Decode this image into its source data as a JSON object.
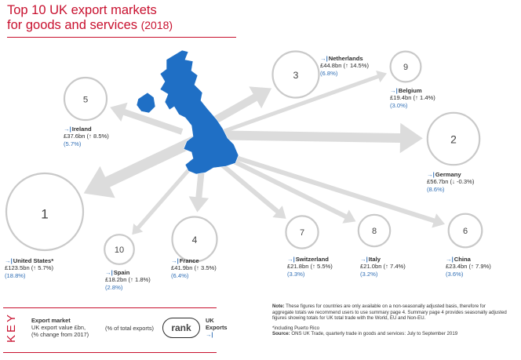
{
  "header": {
    "title_line1": "Top 10 UK export markets",
    "title_line2": "for goods and services",
    "title_year": "(2018)"
  },
  "chart_data": {
    "type": "bubble-map",
    "unit": "£bn",
    "markets": [
      {
        "rank": 1,
        "rank_label": "1",
        "name": "United States*",
        "value": 123.5,
        "value_label": "£123.5bn",
        "change_dir": "↑",
        "change": "5.7%",
        "share": "(18.8%)"
      },
      {
        "rank": 2,
        "rank_label": "2",
        "name": "Germany",
        "value": 56.7,
        "value_label": "£56.7bn",
        "change_dir": "↓",
        "change": "-0.3%",
        "share": "(8.6%)"
      },
      {
        "rank": 3,
        "rank_label": "3",
        "name": "Netherlands",
        "value": 44.8,
        "value_label": "£44.8bn",
        "change_dir": "↑",
        "change": "14.5%",
        "share": "(6.8%)"
      },
      {
        "rank": 4,
        "rank_label": "4",
        "name": "France",
        "value": 41.9,
        "value_label": "£41.9bn",
        "change_dir": "↑",
        "change": "3.5%",
        "share": "(6.4%)"
      },
      {
        "rank": 5,
        "rank_label": "5",
        "name": "Ireland",
        "value": 37.6,
        "value_label": "£37.6bn",
        "change_dir": "↑",
        "change": "8.5%",
        "share": "(5.7%)"
      },
      {
        "rank": 6,
        "rank_label": "6",
        "name": "China",
        "value": 23.4,
        "value_label": "£23.4bn",
        "change_dir": "↑",
        "change": "7.9%",
        "share": "(3.6%)"
      },
      {
        "rank": 7,
        "rank_label": "7",
        "name": "Switzerland",
        "value": 21.8,
        "value_label": "£21.8bn",
        "change_dir": "↑",
        "change": "5.5%",
        "share": "(3.3%)"
      },
      {
        "rank": 8,
        "rank_label": "8",
        "name": "Italy",
        "value": 21.0,
        "value_label": "£21.0bn",
        "change_dir": "↑",
        "change": "7.4%",
        "share": "(3.2%)"
      },
      {
        "rank": 9,
        "rank_label": "9",
        "name": "Belgium",
        "value": 19.4,
        "value_label": "£19.4bn",
        "change_dir": "↑",
        "change": "1.4%",
        "share": "(3.0%)"
      },
      {
        "rank": 10,
        "rank_label": "10",
        "name": "Spain",
        "value": 18.2,
        "value_label": "£18.2bn",
        "change_dir": "↑",
        "change": "1.8%",
        "share": "(2.8%)"
      }
    ]
  },
  "key": {
    "word": "KEY",
    "line1": "Export market",
    "line2": "UK export value £bn,",
    "line3": "(% change from 2017)",
    "share_label": "(% of total exports)",
    "rank_label": "rank",
    "uk_exports_line1": "UK",
    "uk_exports_line2": "Exports"
  },
  "note": {
    "label": "Note:",
    "text": "These figures for countries are only available on a non-seasonally adjusted basis, therefore for aggregate totals we recommend users to use summary page 4. Summary page 4 provides seasonally adjusted figures showing totals for UK total trade with the World, EU and Non-EU.",
    "footnote": "*including Puerto Rico",
    "source_label": "Source:",
    "source_text": "ONS UK Trade, quarterly trade in goods and services: July to September 2019"
  },
  "colors": {
    "title": "#c8102e",
    "map": "#1f6fc5",
    "arrow": "#dcdcdc",
    "bubble_stroke": "#c9c9c9",
    "share": "#2f6eb5"
  },
  "icons": {
    "export": "arrow-into-bar-icon"
  }
}
